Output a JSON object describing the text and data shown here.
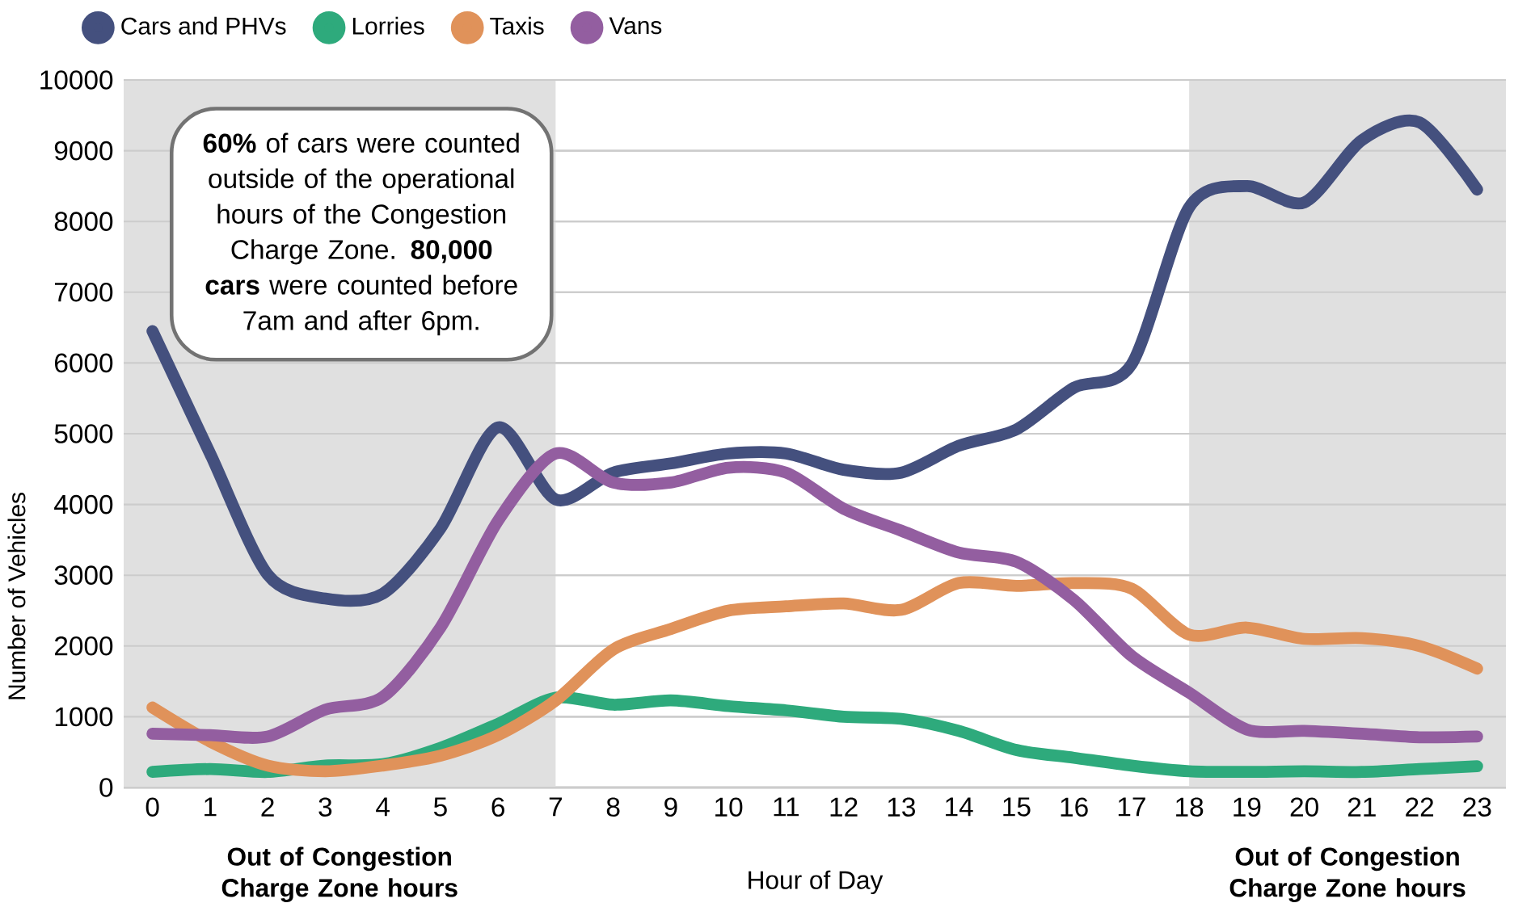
{
  "chart_data": {
    "type": "line",
    "xlabel": "Hour of Day",
    "ylabel": "Number of Vehicles",
    "categories": [
      "0",
      "1",
      "2",
      "3",
      "4",
      "5",
      "6",
      "7",
      "8",
      "9",
      "10",
      "11",
      "12",
      "13",
      "14",
      "15",
      "16",
      "17",
      "18",
      "19",
      "20",
      "21",
      "22",
      "23"
    ],
    "series": [
      {
        "name": "Cars and PHVs",
        "color": "#44507e",
        "values": [
          6450,
          4720,
          3010,
          2670,
          2740,
          3660,
          5090,
          4070,
          4450,
          4580,
          4720,
          4720,
          4490,
          4450,
          4830,
          5060,
          5650,
          5980,
          8200,
          8500,
          8270,
          9150,
          9400,
          8450
        ]
      },
      {
        "name": "Lorries",
        "color": "#2eaa7c",
        "values": [
          220,
          260,
          220,
          310,
          330,
          560,
          900,
          1270,
          1170,
          1230,
          1150,
          1090,
          1000,
          970,
          800,
          530,
          420,
          310,
          230,
          220,
          230,
          220,
          260,
          300
        ]
      },
      {
        "name": "Taxis",
        "color": "#e0925a",
        "values": [
          1130,
          650,
          310,
          230,
          310,
          450,
          740,
          1230,
          1950,
          2240,
          2500,
          2560,
          2600,
          2510,
          2890,
          2850,
          2890,
          2810,
          2160,
          2260,
          2100,
          2110,
          2000,
          1680
        ]
      },
      {
        "name": "Vans",
        "color": "#935ea0",
        "values": [
          760,
          740,
          720,
          1100,
          1280,
          2260,
          3770,
          4720,
          4310,
          4310,
          4520,
          4450,
          3940,
          3630,
          3320,
          3190,
          2650,
          1860,
          1340,
          820,
          800,
          760,
          710,
          720
        ]
      }
    ],
    "ylim": [
      0,
      10000
    ],
    "yticks": [
      0,
      1000,
      2000,
      3000,
      4000,
      5000,
      6000,
      7000,
      8000,
      9000,
      10000
    ],
    "grid": "y",
    "legend": "top left",
    "marker": "none",
    "line_style": "solid",
    "bands": [
      {
        "axis": "x",
        "from": "0",
        "to": "7",
        "label": "Out of Congestion Charge Zone hours",
        "color": "#e0e0e0"
      },
      {
        "axis": "x",
        "from": "18",
        "to": "23",
        "label": "Out of Congestion Charge Zone hours",
        "color": "#e0e0e0"
      }
    ],
    "annotations": [
      "**60%** of cars were counted outside of the operational hours of the Congestion Charge Zone. **80,000 cars** were counted before 7am and after 6pm."
    ]
  }
}
